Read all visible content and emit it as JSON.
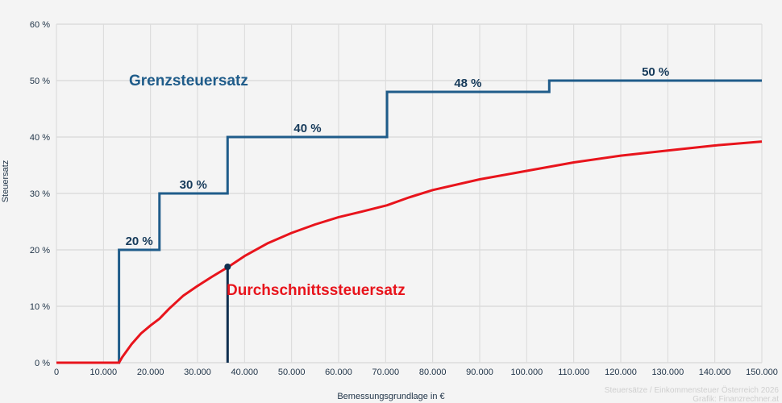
{
  "chart_data": {
    "type": "line",
    "title": "",
    "xlabel": "Bemessungsgrundlage in €",
    "ylabel": "Steuersatz",
    "xlim": [
      0,
      150000
    ],
    "ylim": [
      0,
      60
    ],
    "grid": true,
    "x_ticks": [
      "0",
      "10.000",
      "20.000",
      "30.000",
      "40.000",
      "50.000",
      "60.000",
      "70.000",
      "80.000",
      "90.000",
      "100.000",
      "110.000",
      "120.000",
      "130.000",
      "140.000",
      "150.000"
    ],
    "x_tick_values": [
      0,
      10000,
      20000,
      30000,
      40000,
      50000,
      60000,
      70000,
      80000,
      90000,
      100000,
      110000,
      120000,
      130000,
      140000,
      150000
    ],
    "y_ticks": [
      "0 %",
      "10 %",
      "20 %",
      "30 %",
      "40 %",
      "50 %",
      "60 %"
    ],
    "y_tick_values": [
      0,
      10,
      20,
      30,
      40,
      50,
      60
    ],
    "series": [
      {
        "name": "Grenzsteuersatz",
        "type": "step",
        "color": "#1f5c8a",
        "points": [
          [
            0,
            0
          ],
          [
            13300,
            0
          ],
          [
            13300,
            20
          ],
          [
            21900,
            20
          ],
          [
            21900,
            30
          ],
          [
            36400,
            30
          ],
          [
            36400,
            40
          ],
          [
            70300,
            40
          ],
          [
            70300,
            48
          ],
          [
            104800,
            48
          ],
          [
            104800,
            50
          ],
          [
            150000,
            50
          ]
        ],
        "step_labels": [
          {
            "text": "20 %",
            "x": 17600,
            "y": 20
          },
          {
            "text": "30 %",
            "x": 29100,
            "y": 30
          },
          {
            "text": "40 %",
            "x": 53400,
            "y": 40
          },
          {
            "text": "48 %",
            "x": 87500,
            "y": 48
          },
          {
            "text": "50 %",
            "x": 127400,
            "y": 50
          }
        ]
      },
      {
        "name": "Durchschnittssteuersatz",
        "type": "line",
        "color": "#e8141c",
        "points": [
          [
            0,
            0
          ],
          [
            13300,
            0
          ],
          [
            14000,
            1
          ],
          [
            16000,
            3.3
          ],
          [
            18000,
            5.2
          ],
          [
            20000,
            6.6
          ],
          [
            21900,
            7.8
          ],
          [
            24000,
            9.6
          ],
          [
            27000,
            11.9
          ],
          [
            30000,
            13.6
          ],
          [
            33000,
            15.2
          ],
          [
            36400,
            16.9
          ],
          [
            40000,
            18.9
          ],
          [
            45000,
            21.2
          ],
          [
            50000,
            23.0
          ],
          [
            55000,
            24.5
          ],
          [
            60000,
            25.8
          ],
          [
            65000,
            26.8
          ],
          [
            70300,
            27.9
          ],
          [
            75000,
            29.3
          ],
          [
            80000,
            30.6
          ],
          [
            90000,
            32.5
          ],
          [
            100000,
            34.0
          ],
          [
            110000,
            35.5
          ],
          [
            120000,
            36.7
          ],
          [
            130000,
            37.6
          ],
          [
            140000,
            38.5
          ],
          [
            150000,
            39.2
          ]
        ]
      }
    ],
    "annotations": [
      {
        "text": "Grenzsteuersatz",
        "color": "#1f5c8a"
      },
      {
        "text": "Durchschnittssteuersatz",
        "color": "#e8141c"
      }
    ],
    "marker": {
      "x": 36400,
      "y": 17,
      "color": "#0f2f4f"
    },
    "legend": "none"
  },
  "credits": {
    "line1": "Steuersätze / Einkommensteuer Österreich 2026",
    "line2": "Grafik: Finanzrechner.at"
  }
}
